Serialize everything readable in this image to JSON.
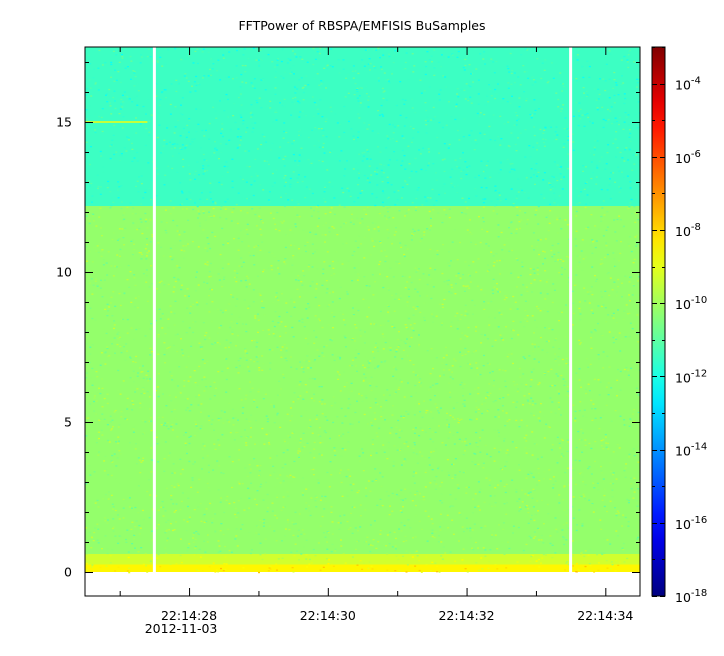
{
  "chart_data": {
    "type": "heatmap",
    "title": "FFTPower of RBSPA/EMFISIS  BuSamples",
    "xlabel": "",
    "ylabel": "",
    "x_ticks": [
      {
        "time": "22:14:28",
        "date": "2012-11-03"
      },
      {
        "time": "22:14:30",
        "date": ""
      },
      {
        "time": "22:14:32",
        "date": ""
      },
      {
        "time": "22:14:34",
        "date": ""
      }
    ],
    "xlim_seconds_after_22_14_26": [
      0.5,
      8.5
    ],
    "data_start_seconds": 0.5,
    "data_end_seconds": 8.5,
    "gaps_seconds": [
      1.5,
      7.5
    ],
    "y_ticks": [
      "0",
      "5",
      "10",
      "15"
    ],
    "ylim": [
      -0.8,
      17.5
    ],
    "data_ymax": 17.5,
    "colorbar": {
      "scale": "log",
      "range": [
        1e-18,
        0.001
      ],
      "tick_exponents": [
        -18,
        -16,
        -14,
        -12,
        -10,
        -8,
        -6,
        -4
      ]
    },
    "bands": [
      {
        "y_from": 0.0,
        "y_to": 0.25,
        "log10_power": -8.5
      },
      {
        "y_from": 0.25,
        "y_to": 0.6,
        "log10_power": -9.3
      },
      {
        "y_from": 0.6,
        "y_to": 12.2,
        "log10_power": -10.2
      },
      {
        "y_from": 12.2,
        "y_to": 17.5,
        "log10_power": -11.5
      }
    ],
    "line_feature": {
      "y": 15.0,
      "x_from": 0.5,
      "x_to": 1.4,
      "log10_power": -9.5
    }
  }
}
